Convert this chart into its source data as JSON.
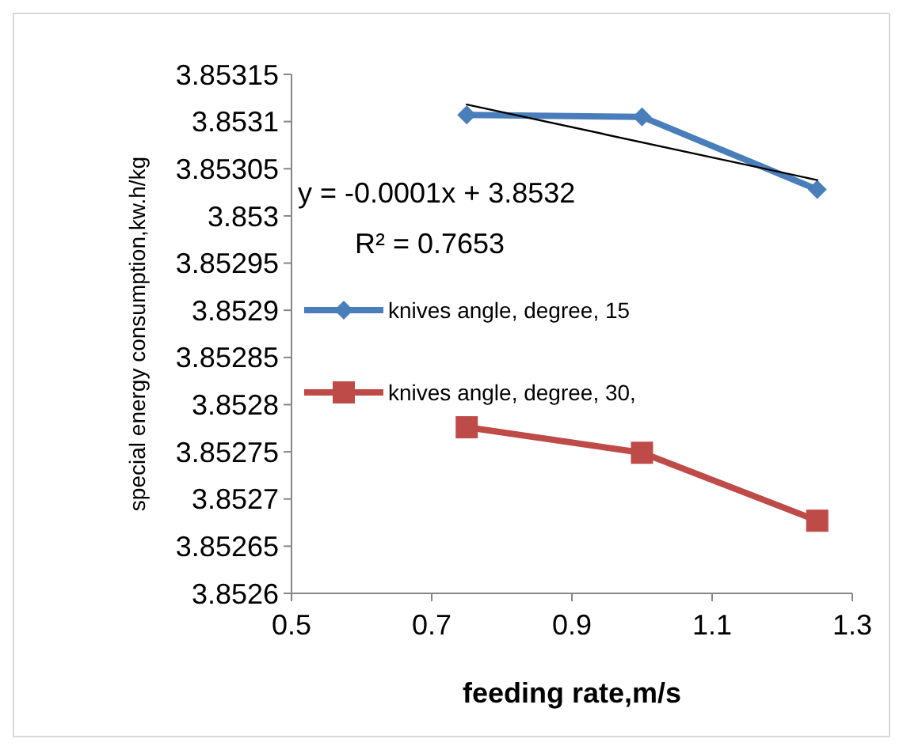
{
  "chart_data": {
    "type": "line",
    "xlabel": "feeding rate,m/s",
    "ylabel": "special energy consumption,kw.h/kg",
    "x": [
      0.75,
      1.0,
      1.25
    ],
    "series": [
      {
        "name": "knives angle, degree, 15",
        "color": "#4a7ebb",
        "values": [
          3.853107,
          3.853105,
          3.853028
        ],
        "marker": "diamond"
      },
      {
        "name": "knives angle, degree, 30,",
        "color": "#be4b48",
        "values": [
          3.852776,
          3.852749,
          3.852677
        ],
        "marker": "square"
      },
      {
        "type": "line",
        "color": "#000000",
        "x": [
          0.75,
          1.25
        ],
        "values": [
          3.853118,
          3.853038
        ],
        "marker": "none"
      }
    ],
    "annotations": [
      "y = -0.0001x + 3.8532",
      "R² = 0.7653"
    ],
    "xlim": [
      0.5,
      1.3
    ],
    "xticks": [
      0.5,
      0.7,
      0.9,
      1.1,
      1.3
    ],
    "ylim": [
      3.8526,
      3.85315
    ],
    "yticks": [
      3.8526,
      3.85265,
      3.8527,
      3.85275,
      3.8528,
      3.85285,
      3.8529,
      3.85295,
      3.853,
      3.85305,
      3.8531,
      3.85315
    ],
    "grid": false,
    "legend": "left"
  }
}
